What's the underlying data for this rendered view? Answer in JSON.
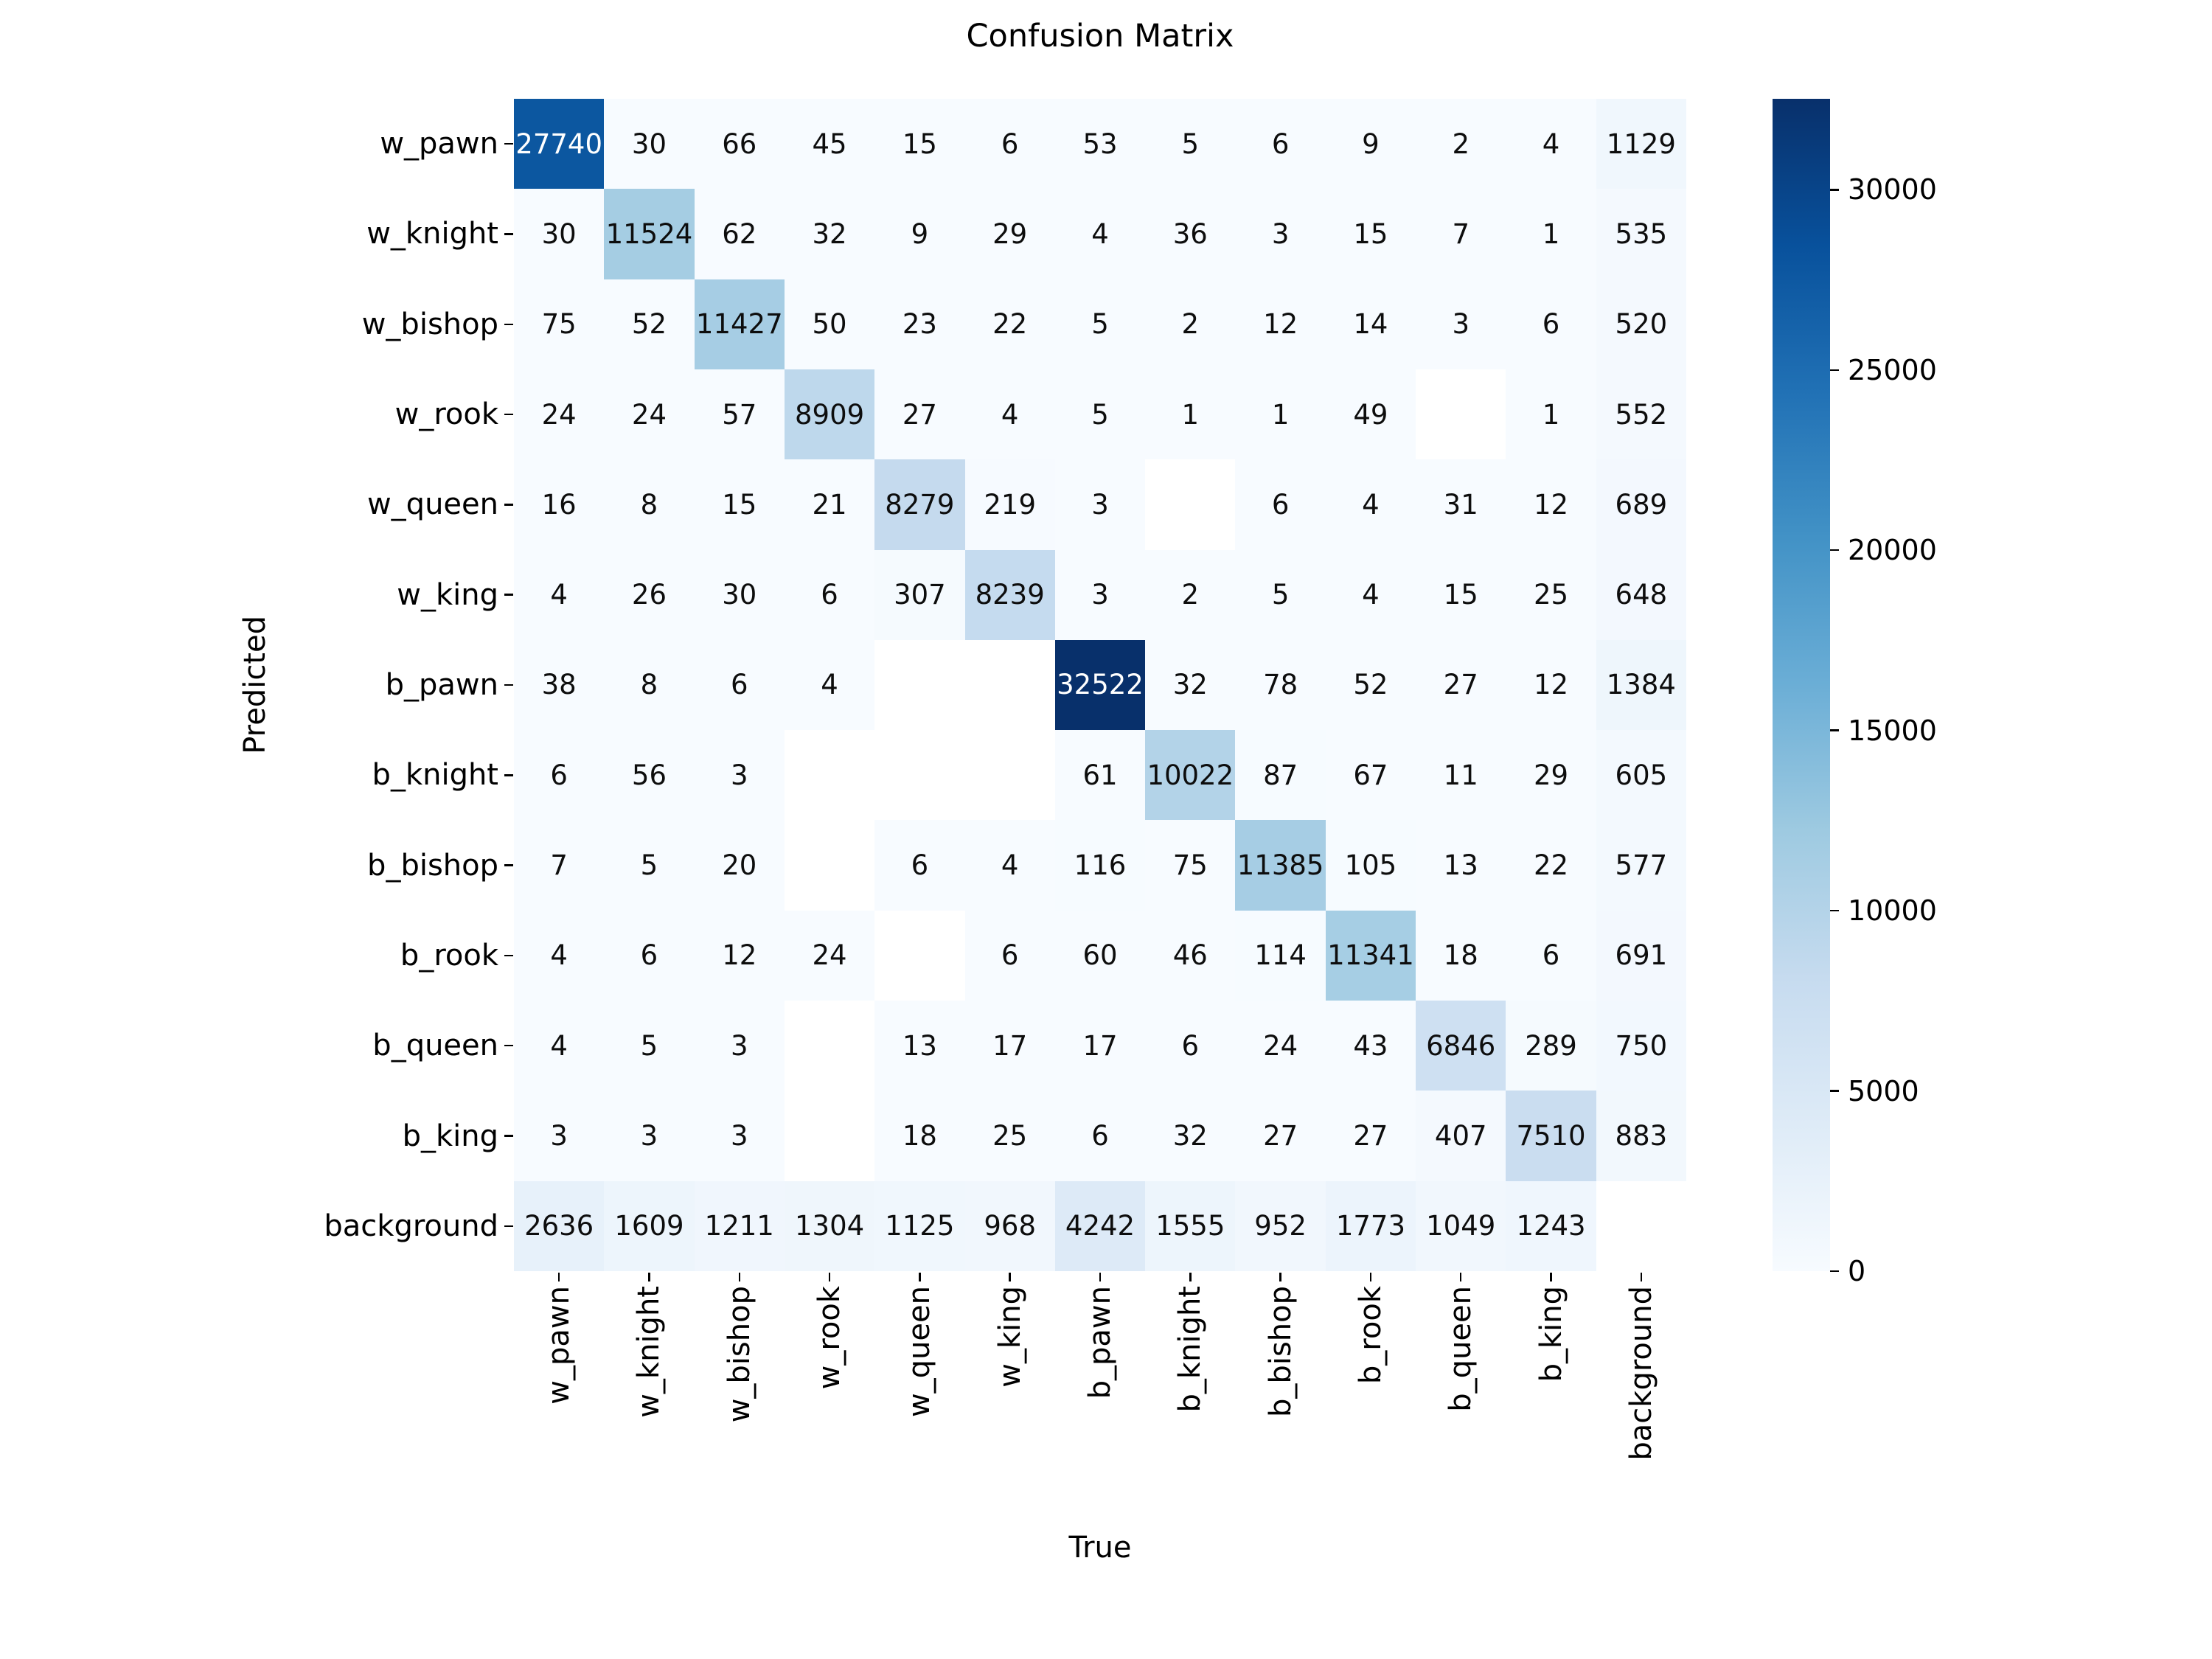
{
  "title": "Confusion Matrix",
  "axes": {
    "x_label": "True",
    "y_label": "Predicted"
  },
  "chart_data": {
    "type": "heatmap",
    "x_categories": [
      "w_pawn",
      "w_knight",
      "w_bishop",
      "w_rook",
      "w_queen",
      "w_king",
      "b_pawn",
      "b_knight",
      "b_bishop",
      "b_rook",
      "b_queen",
      "b_king",
      "background"
    ],
    "y_categories": [
      "w_pawn",
      "w_knight",
      "w_bishop",
      "w_rook",
      "w_queen",
      "w_king",
      "b_pawn",
      "b_knight",
      "b_bishop",
      "b_rook",
      "b_queen",
      "b_king",
      "background"
    ],
    "rows": [
      [
        27740,
        30,
        66,
        45,
        15,
        6,
        53,
        5,
        6,
        9,
        2,
        4,
        1129
      ],
      [
        30,
        11524,
        62,
        32,
        9,
        29,
        4,
        36,
        3,
        15,
        7,
        1,
        535
      ],
      [
        75,
        52,
        11427,
        50,
        23,
        22,
        5,
        2,
        12,
        14,
        3,
        6,
        520
      ],
      [
        24,
        24,
        57,
        8909,
        27,
        4,
        5,
        1,
        1,
        49,
        null,
        1,
        552
      ],
      [
        16,
        8,
        15,
        21,
        8279,
        219,
        3,
        null,
        6,
        4,
        31,
        12,
        689
      ],
      [
        4,
        26,
        30,
        6,
        307,
        8239,
        3,
        2,
        5,
        4,
        15,
        25,
        648
      ],
      [
        38,
        8,
        6,
        4,
        null,
        null,
        32522,
        32,
        78,
        52,
        27,
        12,
        1384
      ],
      [
        6,
        56,
        3,
        null,
        null,
        null,
        61,
        10022,
        87,
        67,
        11,
        29,
        605
      ],
      [
        7,
        5,
        20,
        null,
        6,
        4,
        116,
        75,
        11385,
        105,
        13,
        22,
        577
      ],
      [
        4,
        6,
        12,
        24,
        null,
        6,
        60,
        46,
        114,
        11341,
        18,
        6,
        691
      ],
      [
        4,
        5,
        3,
        null,
        13,
        17,
        17,
        6,
        24,
        43,
        6846,
        289,
        750
      ],
      [
        3,
        3,
        3,
        null,
        18,
        25,
        6,
        32,
        27,
        27,
        407,
        7510,
        883
      ],
      [
        2636,
        1609,
        1211,
        1304,
        1125,
        968,
        4242,
        1555,
        952,
        1773,
        1049,
        1243,
        null
      ]
    ],
    "vmin": 0,
    "vmax": 32522,
    "grid": false,
    "legend": "colorbar-right",
    "colormap": {
      "name": "Blues",
      "stops": [
        "#f7fbff",
        "#deebf7",
        "#c6dbef",
        "#9ecae1",
        "#6baed6",
        "#4292c6",
        "#2171b5",
        "#08519c",
        "#08306b"
      ]
    },
    "null_color": "#ffffff",
    "annot_color_dark": "#0d0d0d",
    "annot_color_light": "#ffffff",
    "colorbar_ticks": [
      0,
      5000,
      10000,
      15000,
      20000,
      25000,
      30000
    ]
  }
}
